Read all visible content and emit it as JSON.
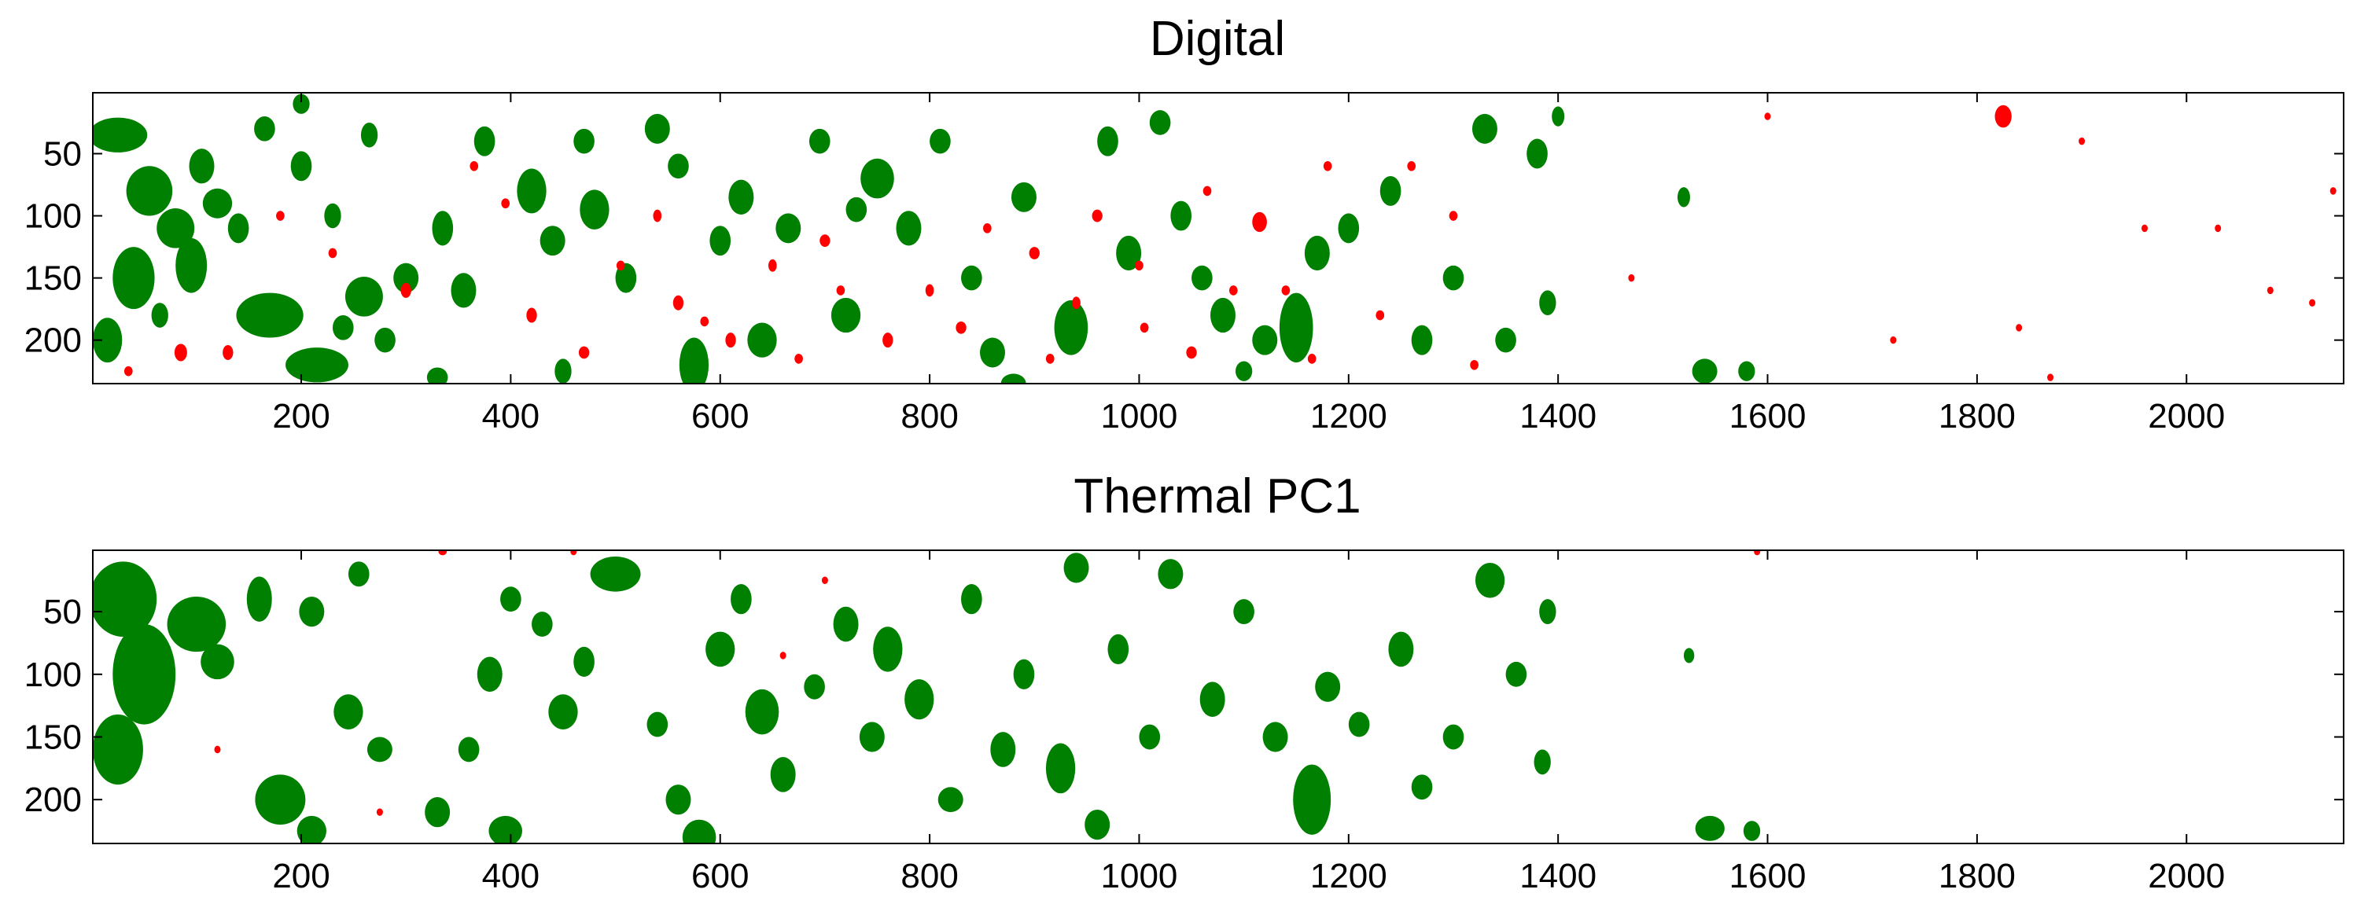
{
  "chart_data": [
    {
      "type": "heatmap",
      "title": "Digital",
      "xlim": [
        1,
        2150
      ],
      "ylim": [
        1,
        235
      ],
      "y_reversed": true,
      "xticks": [
        200,
        400,
        600,
        800,
        1000,
        1200,
        1400,
        1600,
        1800,
        2000
      ],
      "yticks": [
        50,
        100,
        150,
        200
      ],
      "colors": {
        "positive": "#008000",
        "negative": "#ff0000",
        "background": "#ffffff"
      },
      "green_blobs": [
        [
          25,
          35,
          28,
          14
        ],
        [
          55,
          80,
          22,
          20
        ],
        [
          80,
          110,
          18,
          16
        ],
        [
          95,
          140,
          15,
          22
        ],
        [
          40,
          150,
          20,
          25
        ],
        [
          15,
          200,
          14,
          18
        ],
        [
          105,
          60,
          12,
          14
        ],
        [
          120,
          90,
          14,
          12
        ],
        [
          140,
          110,
          10,
          12
        ],
        [
          170,
          180,
          32,
          18
        ],
        [
          215,
          220,
          30,
          14
        ],
        [
          200,
          10,
          8,
          8
        ],
        [
          165,
          30,
          10,
          10
        ],
        [
          200,
          60,
          10,
          12
        ],
        [
          230,
          100,
          8,
          10
        ],
        [
          260,
          165,
          18,
          16
        ],
        [
          280,
          200,
          10,
          10
        ],
        [
          265,
          35,
          8,
          10
        ],
        [
          300,
          150,
          12,
          12
        ],
        [
          335,
          110,
          10,
          14
        ],
        [
          355,
          160,
          12,
          14
        ],
        [
          375,
          40,
          10,
          12
        ],
        [
          420,
          80,
          14,
          18
        ],
        [
          440,
          120,
          12,
          12
        ],
        [
          470,
          40,
          10,
          10
        ],
        [
          480,
          95,
          14,
          16
        ],
        [
          510,
          150,
          10,
          12
        ],
        [
          540,
          30,
          12,
          12
        ],
        [
          560,
          60,
          10,
          10
        ],
        [
          575,
          220,
          14,
          22
        ],
        [
          600,
          120,
          10,
          12
        ],
        [
          620,
          85,
          12,
          14
        ],
        [
          640,
          200,
          14,
          14
        ],
        [
          665,
          110,
          12,
          12
        ],
        [
          695,
          40,
          10,
          10
        ],
        [
          720,
          180,
          14,
          14
        ],
        [
          730,
          95,
          10,
          10
        ],
        [
          750,
          70,
          16,
          16
        ],
        [
          780,
          110,
          12,
          14
        ],
        [
          810,
          40,
          10,
          10
        ],
        [
          840,
          150,
          10,
          10
        ],
        [
          860,
          210,
          12,
          12
        ],
        [
          890,
          85,
          12,
          12
        ],
        [
          935,
          190,
          16,
          22
        ],
        [
          970,
          40,
          10,
          12
        ],
        [
          990,
          130,
          12,
          14
        ],
        [
          1020,
          25,
          10,
          10
        ],
        [
          1040,
          100,
          10,
          12
        ],
        [
          1060,
          150,
          10,
          10
        ],
        [
          1080,
          180,
          12,
          14
        ],
        [
          1120,
          200,
          12,
          12
        ],
        [
          1150,
          190,
          16,
          28
        ],
        [
          1170,
          130,
          12,
          14
        ],
        [
          1200,
          110,
          10,
          12
        ],
        [
          1240,
          80,
          10,
          12
        ],
        [
          1270,
          200,
          10,
          12
        ],
        [
          1300,
          150,
          10,
          10
        ],
        [
          1330,
          30,
          12,
          12
        ],
        [
          1350,
          200,
          10,
          10
        ],
        [
          1380,
          50,
          10,
          12
        ],
        [
          1390,
          170,
          8,
          10
        ],
        [
          1400,
          20,
          6,
          8
        ],
        [
          1520,
          85,
          6,
          8
        ],
        [
          1540,
          225,
          12,
          10
        ],
        [
          1580,
          225,
          8,
          8
        ],
        [
          330,
          230,
          10,
          8
        ],
        [
          450,
          225,
          8,
          10
        ],
        [
          880,
          235,
          12,
          8
        ],
        [
          1100,
          225,
          8,
          8
        ],
        [
          65,
          180,
          8,
          10
        ],
        [
          240,
          190,
          10,
          10
        ]
      ],
      "red_blobs": [
        [
          1825,
          20,
          8,
          9
        ],
        [
          1115,
          105,
          7,
          8
        ],
        [
          85,
          210,
          6,
          7
        ],
        [
          300,
          160,
          5,
          6
        ],
        [
          420,
          180,
          5,
          6
        ],
        [
          470,
          210,
          5,
          5
        ],
        [
          540,
          100,
          4,
          5
        ],
        [
          560,
          170,
          5,
          6
        ],
        [
          610,
          200,
          5,
          6
        ],
        [
          650,
          140,
          4,
          5
        ],
        [
          700,
          120,
          5,
          5
        ],
        [
          760,
          200,
          5,
          6
        ],
        [
          800,
          160,
          4,
          5
        ],
        [
          830,
          190,
          5,
          5
        ],
        [
          900,
          130,
          5,
          5
        ],
        [
          940,
          170,
          4,
          5
        ],
        [
          960,
          100,
          5,
          5
        ],
        [
          1000,
          140,
          4,
          4
        ],
        [
          1050,
          210,
          5,
          5
        ],
        [
          1090,
          160,
          4,
          4
        ],
        [
          1140,
          160,
          4,
          4
        ],
        [
          1180,
          60,
          4,
          4
        ],
        [
          1230,
          180,
          4,
          4
        ],
        [
          1260,
          60,
          4,
          4
        ],
        [
          1300,
          100,
          4,
          4
        ],
        [
          1320,
          220,
          4,
          4
        ],
        [
          1470,
          150,
          3,
          3
        ],
        [
          1600,
          20,
          3,
          3
        ],
        [
          1720,
          200,
          3,
          3
        ],
        [
          1840,
          190,
          3,
          3
        ],
        [
          1870,
          230,
          3,
          3
        ],
        [
          1900,
          40,
          3,
          3
        ],
        [
          1960,
          110,
          3,
          3
        ],
        [
          2030,
          110,
          3,
          3
        ],
        [
          2080,
          160,
          3,
          3
        ],
        [
          2120,
          170,
          3,
          3
        ],
        [
          2140,
          80,
          3,
          3
        ],
        [
          230,
          130,
          4,
          4
        ],
        [
          180,
          100,
          4,
          4
        ],
        [
          130,
          210,
          5,
          6
        ],
        [
          35,
          225,
          4,
          4
        ],
        [
          365,
          60,
          4,
          4
        ],
        [
          395,
          90,
          4,
          4
        ],
        [
          505,
          140,
          4,
          4
        ],
        [
          585,
          185,
          4,
          4
        ],
        [
          675,
          215,
          4,
          4
        ],
        [
          715,
          160,
          4,
          4
        ],
        [
          855,
          110,
          4,
          4
        ],
        [
          915,
          215,
          4,
          4
        ],
        [
          1005,
          190,
          4,
          4
        ],
        [
          1065,
          80,
          4,
          4
        ],
        [
          1165,
          215,
          4,
          4
        ]
      ]
    },
    {
      "type": "heatmap",
      "title": "Thermal PC1",
      "xlim": [
        1,
        2150
      ],
      "ylim": [
        1,
        235
      ],
      "y_reversed": true,
      "xticks": [
        200,
        400,
        600,
        800,
        1000,
        1200,
        1400,
        1600,
        1800,
        2000
      ],
      "yticks": [
        50,
        100,
        150,
        200
      ],
      "colors": {
        "positive": "#008000",
        "negative": "#ff0000",
        "background": "#ffffff"
      },
      "green_blobs": [
        [
          30,
          40,
          32,
          30
        ],
        [
          50,
          100,
          30,
          40
        ],
        [
          25,
          160,
          24,
          28
        ],
        [
          100,
          60,
          28,
          22
        ],
        [
          120,
          90,
          16,
          14
        ],
        [
          160,
          40,
          12,
          18
        ],
        [
          180,
          200,
          24,
          20
        ],
        [
          210,
          225,
          14,
          12
        ],
        [
          210,
          50,
          12,
          12
        ],
        [
          245,
          130,
          14,
          14
        ],
        [
          275,
          160,
          12,
          10
        ],
        [
          255,
          20,
          10,
          10
        ],
        [
          330,
          210,
          12,
          12
        ],
        [
          360,
          160,
          10,
          10
        ],
        [
          395,
          225,
          16,
          12
        ],
        [
          380,
          100,
          12,
          14
        ],
        [
          400,
          40,
          10,
          10
        ],
        [
          430,
          60,
          10,
          10
        ],
        [
          450,
          130,
          14,
          14
        ],
        [
          470,
          90,
          10,
          12
        ],
        [
          500,
          20,
          24,
          14
        ],
        [
          540,
          140,
          10,
          10
        ],
        [
          560,
          200,
          12,
          12
        ],
        [
          580,
          230,
          16,
          14
        ],
        [
          600,
          80,
          14,
          14
        ],
        [
          620,
          40,
          10,
          12
        ],
        [
          640,
          130,
          16,
          18
        ],
        [
          660,
          180,
          12,
          14
        ],
        [
          690,
          110,
          10,
          10
        ],
        [
          720,
          60,
          12,
          14
        ],
        [
          745,
          150,
          12,
          12
        ],
        [
          760,
          80,
          14,
          18
        ],
        [
          790,
          120,
          14,
          16
        ],
        [
          820,
          200,
          12,
          10
        ],
        [
          840,
          40,
          10,
          12
        ],
        [
          870,
          160,
          12,
          14
        ],
        [
          890,
          100,
          10,
          12
        ],
        [
          925,
          175,
          14,
          20
        ],
        [
          940,
          15,
          12,
          12
        ],
        [
          960,
          220,
          12,
          12
        ],
        [
          980,
          80,
          10,
          12
        ],
        [
          1010,
          150,
          10,
          10
        ],
        [
          1030,
          20,
          12,
          12
        ],
        [
          1070,
          120,
          12,
          14
        ],
        [
          1100,
          50,
          10,
          10
        ],
        [
          1130,
          150,
          12,
          12
        ],
        [
          1165,
          200,
          18,
          28
        ],
        [
          1180,
          110,
          12,
          12
        ],
        [
          1210,
          140,
          10,
          10
        ],
        [
          1250,
          80,
          12,
          14
        ],
        [
          1270,
          190,
          10,
          10
        ],
        [
          1300,
          150,
          10,
          10
        ],
        [
          1335,
          25,
          14,
          14
        ],
        [
          1360,
          100,
          10,
          10
        ],
        [
          1390,
          50,
          8,
          10
        ],
        [
          1385,
          170,
          8,
          10
        ],
        [
          1525,
          85,
          5,
          6
        ],
        [
          1545,
          223,
          14,
          10
        ],
        [
          1585,
          225,
          8,
          8
        ]
      ],
      "red_blobs": [
        [
          335,
          2,
          4,
          3
        ],
        [
          1590,
          2,
          3,
          3
        ],
        [
          700,
          25,
          3,
          3
        ],
        [
          660,
          85,
          3,
          3
        ],
        [
          120,
          160,
          3,
          3
        ],
        [
          460,
          2,
          3,
          3
        ],
        [
          275,
          210,
          3,
          3
        ]
      ]
    }
  ]
}
